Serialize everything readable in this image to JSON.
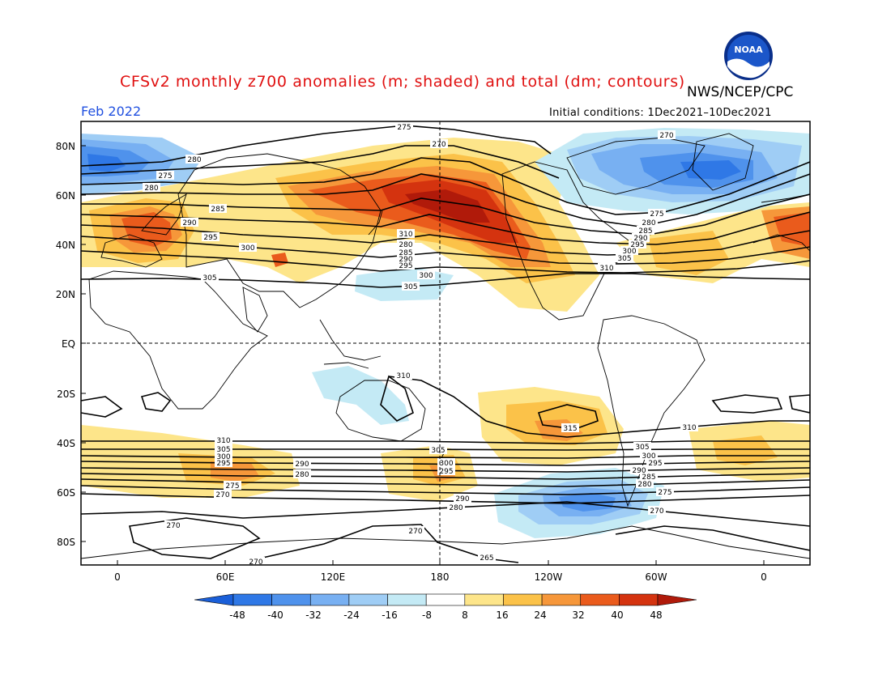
{
  "header": {
    "title": "CFSv2 monthly z700 anomalies (m; shaded) and total (dm; contours)",
    "agency": "NWS/NCEP/CPC",
    "month": "Feb 2022",
    "initial_conditions": "Initial conditions: 1Dec2021–10Dec2021",
    "logo_text": "NOAA"
  },
  "axes": {
    "lat_labels": [
      "80N",
      "60N",
      "40N",
      "20N",
      "EQ",
      "20S",
      "40S",
      "60S",
      "80S"
    ],
    "lon_labels": [
      "0",
      "60E",
      "120E",
      "180",
      "120W",
      "60W",
      "0"
    ]
  },
  "colorbar": {
    "ticks": [
      "-48",
      "-40",
      "-32",
      "-24",
      "-16",
      "-8",
      "8",
      "16",
      "24",
      "32",
      "40",
      "48"
    ],
    "colors": [
      "#1a5fd9",
      "#2f78e6",
      "#4f92ec",
      "#78b0f2",
      "#9fcdf5",
      "#c4eaf5",
      "#ffffff",
      "#fde58a",
      "#fbc249",
      "#f6973a",
      "#ea5b1c",
      "#d4330f",
      "#b01a0a"
    ]
  },
  "contour_labels": [
    "275",
    "280",
    "270",
    "275",
    "280",
    "285",
    "290",
    "295",
    "300",
    "305",
    "310",
    "280",
    "285",
    "290",
    "295",
    "300",
    "305",
    "310",
    "305",
    "275",
    "280",
    "285",
    "290",
    "295",
    "300",
    "305",
    "310",
    "310",
    "310",
    "315",
    "310",
    "305",
    "300",
    "295",
    "290",
    "285",
    "280",
    "275",
    "270",
    "310",
    "305",
    "300",
    "295",
    "290",
    "280",
    "275",
    "270",
    "305",
    "300",
    "295",
    "275",
    "270",
    "265",
    "265",
    "270",
    "270"
  ]
}
